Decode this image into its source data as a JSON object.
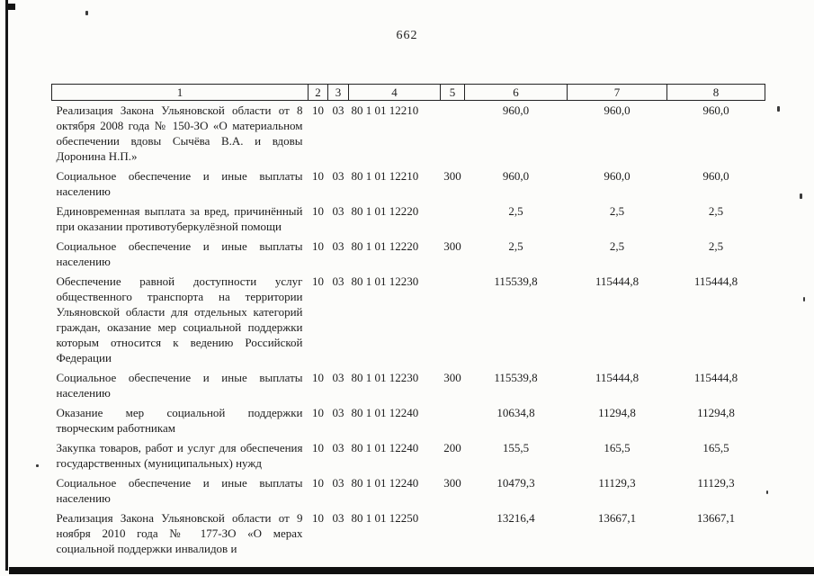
{
  "page": {
    "number": "662"
  },
  "table": {
    "headers": [
      "1",
      "2",
      "3",
      "4",
      "5",
      "6",
      "7",
      "8"
    ],
    "rows": [
      {
        "name": "Реализация Закона Ульяновской области от 8 октября 2008 года № 150-ЗО «О материальном обеспечении вдовы Сычёва В.А. и вдовы Доронина Н.П.»",
        "codes": [
          "10",
          "03",
          "80 1 01 12210",
          ""
        ],
        "amounts": [
          "960,0",
          "960,0",
          "960,0"
        ]
      },
      {
        "name": "Социальное обеспечение и иные выплаты населению",
        "codes": [
          "10",
          "03",
          "80 1 01 12210",
          "300"
        ],
        "amounts": [
          "960,0",
          "960,0",
          "960,0"
        ]
      },
      {
        "name": "Единовременная выплата за вред, причинённый при оказании противотуберкулёзной помощи",
        "codes": [
          "10",
          "03",
          "80 1 01 12220",
          ""
        ],
        "amounts": [
          "2,5",
          "2,5",
          "2,5"
        ]
      },
      {
        "name": "Социальное обеспечение и иные выплаты населению",
        "codes": [
          "10",
          "03",
          "80 1 01 12220",
          "300"
        ],
        "amounts": [
          "2,5",
          "2,5",
          "2,5"
        ]
      },
      {
        "name": "Обеспечение равной доступности услуг общественного транспорта на территории Ульяновской области для отдельных категорий граждан, оказание мер социальной поддержки которым относится к ведению Российской Федерации",
        "codes": [
          "10",
          "03",
          "80 1 01 12230",
          ""
        ],
        "amounts": [
          "115539,8",
          "115444,8",
          "115444,8"
        ]
      },
      {
        "name": "Социальное обеспечение и иные выплаты населению",
        "codes": [
          "10",
          "03",
          "80 1 01 12230",
          "300"
        ],
        "amounts": [
          "115539,8",
          "115444,8",
          "115444,8"
        ]
      },
      {
        "name": "Оказание мер социальной поддержки творческим работникам",
        "codes": [
          "10",
          "03",
          "80 1 01 12240",
          ""
        ],
        "amounts": [
          "10634,8",
          "11294,8",
          "11294,8"
        ]
      },
      {
        "name": "Закупка товаров, работ и услуг для обеспечения государственных (муниципальных) нужд",
        "codes": [
          "10",
          "03",
          "80 1 01 12240",
          "200"
        ],
        "amounts": [
          "155,5",
          "165,5",
          "165,5"
        ]
      },
      {
        "name": "Социальное обеспечение и иные выплаты населению",
        "codes": [
          "10",
          "03",
          "80 1 01 12240",
          "300"
        ],
        "amounts": [
          "10479,3",
          "11129,3",
          "11129,3"
        ]
      },
      {
        "name": "Реализация Закона Ульяновской области от 9 ноября 2010 года № 177-ЗО «О мерах социальной поддержки инвалидов и",
        "codes": [
          "10",
          "03",
          "80 1 01 12250",
          ""
        ],
        "amounts": [
          "13216,4",
          "13667,1",
          "13667,1"
        ]
      }
    ]
  }
}
